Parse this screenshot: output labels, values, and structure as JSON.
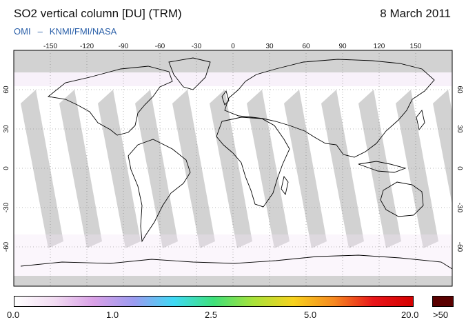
{
  "header": {
    "title": "SO2 vertical column [DU] (TRM)",
    "date": "8 March 2011",
    "credit_left": "OMI",
    "credit_dash": "–",
    "credit_right": "KNMI/FMI/NASA"
  },
  "map": {
    "lon_ticks": [
      "-150",
      "-120",
      "-90",
      "-60",
      "-30",
      "0",
      "30",
      "60",
      "90",
      "120",
      "150"
    ],
    "lat_ticks": [
      "60",
      "30",
      "0",
      "-30",
      "-60"
    ],
    "no_data_color": "#d2d2d2",
    "coastline_color": "#000000"
  },
  "colorbar": {
    "labels": [
      "0.0",
      "1.0",
      "2.5",
      "5.0",
      "20.0",
      ">50"
    ],
    "colors": [
      "#ffffff",
      "#f2dcf2",
      "#d9a0e6",
      "#9b9bf0",
      "#3fd9f5",
      "#3fe07a",
      "#a8e23a",
      "#f7d21e",
      "#f68a20",
      "#e8161a",
      "#d40000"
    ],
    "overflow_color": "#5a0000"
  }
}
